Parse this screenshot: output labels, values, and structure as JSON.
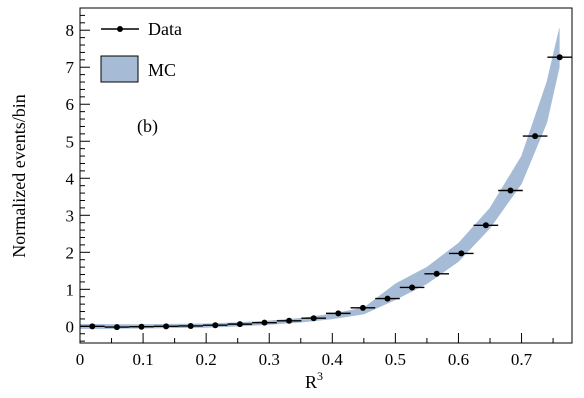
{
  "chart_data": {
    "type": "scatter",
    "xlabel": "R",
    "xlabel_superscript": "3",
    "ylabel": "Normalized events/bin",
    "xlim": [
      0,
      0.78
    ],
    "ylim": [
      -0.45,
      8.6
    ],
    "x_ticks": [
      "0",
      "0.1",
      "0.2",
      "0.3",
      "0.4",
      "0.5",
      "0.6",
      "0.7"
    ],
    "y_ticks": [
      "0",
      "1",
      "2",
      "3",
      "4",
      "5",
      "6",
      "7",
      "8"
    ],
    "annotation": "(b)",
    "legend": {
      "position": "top-left",
      "entries": [
        "Data",
        "MC"
      ]
    },
    "colors": {
      "data": "#000000",
      "mc_band": "#a6bcd6",
      "mc_band_edge": "#7f98b8"
    },
    "bin_half_width": 0.0195,
    "series": [
      {
        "name": "Data",
        "kind": "points-with-xerr",
        "x": [
          0.0195,
          0.0585,
          0.0975,
          0.1365,
          0.1755,
          0.2145,
          0.2535,
          0.2925,
          0.3315,
          0.3705,
          0.4095,
          0.4485,
          0.4875,
          0.5265,
          0.5655,
          0.6045,
          0.6435,
          0.6825,
          0.7215,
          0.7605
        ],
        "y": [
          0.0,
          -0.02,
          -0.01,
          0.0,
          0.01,
          0.03,
          0.06,
          0.1,
          0.15,
          0.22,
          0.35,
          0.5,
          0.75,
          1.05,
          1.42,
          1.97,
          2.73,
          3.67,
          5.14,
          7.27
        ]
      },
      {
        "name": "MC",
        "kind": "band",
        "x": [
          0.0,
          0.05,
          0.1,
          0.15,
          0.2,
          0.25,
          0.3,
          0.35,
          0.4,
          0.45,
          0.5,
          0.55,
          0.6,
          0.65,
          0.7,
          0.74,
          0.76
        ],
        "y_low": [
          -0.06,
          -0.06,
          -0.05,
          -0.04,
          -0.03,
          0.0,
          0.05,
          0.11,
          0.2,
          0.33,
          0.72,
          1.15,
          1.75,
          2.65,
          3.85,
          5.5,
          7.0
        ],
        "y_high": [
          0.06,
          0.05,
          0.05,
          0.06,
          0.07,
          0.1,
          0.15,
          0.22,
          0.34,
          0.5,
          1.15,
          1.6,
          2.25,
          3.2,
          4.6,
          6.6,
          8.05
        ]
      }
    ]
  }
}
